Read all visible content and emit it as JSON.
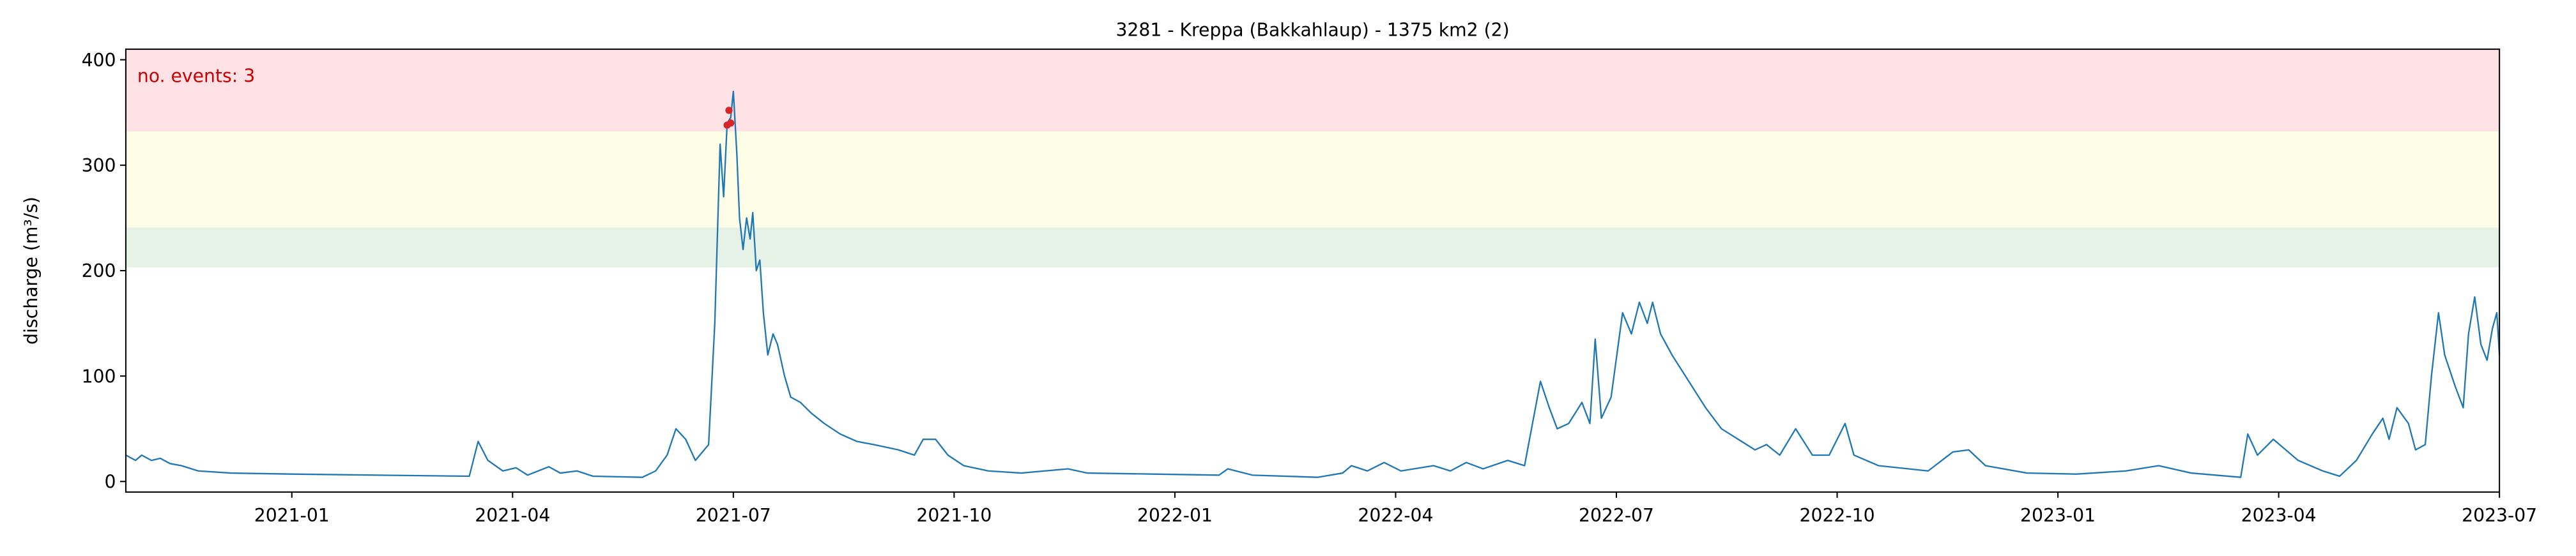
{
  "chart_data": {
    "type": "line",
    "title": "3281 - Kreppa (Bakkahlaup) - 1375 km2 (2)",
    "y_label": "discharge (m³/s)",
    "annotation": "no. events: 3",
    "annotation_color": "#cc0000",
    "xlim": [
      2020.812,
      2023.5
    ],
    "xticks": [
      {
        "value": 2021.0,
        "label": "2021-01"
      },
      {
        "value": 2021.25,
        "label": "2021-04"
      },
      {
        "value": 2021.5,
        "label": "2021-07"
      },
      {
        "value": 2021.75,
        "label": "2021-10"
      },
      {
        "value": 2022.0,
        "label": "2022-01"
      },
      {
        "value": 2022.25,
        "label": "2022-04"
      },
      {
        "value": 2022.5,
        "label": "2022-07"
      },
      {
        "value": 2022.75,
        "label": "2022-10"
      },
      {
        "value": 2023.0,
        "label": "2023-01"
      },
      {
        "value": 2023.25,
        "label": "2023-04"
      },
      {
        "value": 2023.5,
        "label": "2023-07"
      }
    ],
    "ylim": [
      -10,
      410
    ],
    "yticks": [
      0,
      100,
      200,
      300,
      400
    ],
    "bands": [
      {
        "from": 203,
        "to": 241,
        "color": "#e6f2e6"
      },
      {
        "from": 241,
        "to": 332,
        "color": "#fefee6"
      },
      {
        "from": 332,
        "color": "#ffe2e6"
      }
    ],
    "series": [
      {
        "color": "#1f77b4",
        "x": [
          2020.812,
          2020.823,
          2020.83,
          2020.841,
          2020.851,
          2020.862,
          2020.875,
          2020.894,
          2020.931,
          2021.0,
          2021.099,
          2021.201,
          2021.211,
          2021.222,
          2021.239,
          2021.254,
          2021.267,
          2021.291,
          2021.304,
          2021.323,
          2021.341,
          2021.397,
          2021.412,
          2021.425,
          2021.435,
          2021.446,
          2021.457,
          2021.472,
          2021.479,
          2021.485,
          2021.489,
          2021.493,
          2021.497,
          2021.5,
          2021.504,
          2021.507,
          2021.511,
          2021.515,
          2021.519,
          2021.522,
          2021.526,
          2021.53,
          2021.534,
          2021.539,
          2021.545,
          2021.55,
          2021.558,
          2021.565,
          2021.576,
          2021.588,
          2021.603,
          2021.621,
          2021.64,
          2021.659,
          2021.687,
          2021.705,
          2021.715,
          2021.729,
          2021.743,
          2021.761,
          2021.789,
          2021.826,
          2021.879,
          2021.901,
          2021.976,
          2022.05,
          2022.06,
          2022.088,
          2022.162,
          2022.19,
          2022.2,
          2022.218,
          2022.237,
          2022.256,
          2022.293,
          2022.312,
          2022.33,
          2022.349,
          2022.377,
          2022.396,
          2022.414,
          2022.424,
          2022.433,
          2022.446,
          2022.461,
          2022.47,
          2022.476,
          2022.483,
          2022.494,
          2022.507,
          2022.517,
          2022.526,
          2022.535,
          2022.541,
          2022.55,
          2022.563,
          2022.582,
          2022.601,
          2022.619,
          2022.638,
          2022.657,
          2022.67,
          2022.685,
          2022.703,
          2022.722,
          2022.741,
          2022.759,
          2022.769,
          2022.797,
          2022.853,
          2022.881,
          2022.899,
          2022.918,
          2022.965,
          2023.021,
          2023.077,
          2023.114,
          2023.151,
          2023.207,
          2023.215,
          2023.226,
          2023.244,
          2023.272,
          2023.3,
          2023.319,
          2023.338,
          2023.356,
          2023.368,
          2023.375,
          2023.384,
          2023.397,
          2023.405,
          2023.416,
          2023.423,
          2023.431,
          2023.438,
          2023.45,
          2023.459,
          2023.465,
          2023.472,
          2023.479,
          2023.486,
          2023.492,
          2023.497,
          2023.5
        ],
        "values": [
          25,
          20,
          25,
          20,
          22,
          17,
          15,
          10,
          8,
          7,
          6,
          5,
          38,
          20,
          10,
          13,
          6,
          14,
          8,
          10,
          5,
          4,
          10,
          25,
          50,
          40,
          20,
          35,
          150,
          320,
          270,
          340,
          345,
          370,
          310,
          250,
          220,
          250,
          230,
          255,
          200,
          210,
          160,
          120,
          140,
          130,
          100,
          80,
          75,
          65,
          55,
          45,
          38,
          35,
          30,
          25,
          40,
          40,
          25,
          15,
          10,
          8,
          12,
          8,
          7,
          6,
          12,
          6,
          4,
          8,
          15,
          10,
          18,
          10,
          15,
          10,
          18,
          12,
          20,
          15,
          95,
          70,
          50,
          55,
          75,
          55,
          135,
          60,
          80,
          160,
          140,
          170,
          150,
          170,
          140,
          120,
          95,
          70,
          50,
          40,
          30,
          35,
          25,
          50,
          25,
          25,
          55,
          25,
          15,
          10,
          28,
          30,
          15,
          8,
          7,
          10,
          15,
          8,
          4,
          45,
          25,
          40,
          20,
          10,
          5,
          20,
          45,
          60,
          40,
          70,
          55,
          30,
          35,
          100,
          160,
          120,
          90,
          70,
          140,
          175,
          130,
          115,
          145,
          160,
          120
        ]
      }
    ],
    "events": {
      "color": "#d62728",
      "x": [
        2021.493,
        2021.495,
        2021.497
      ],
      "values": [
        338,
        352,
        340
      ]
    }
  }
}
